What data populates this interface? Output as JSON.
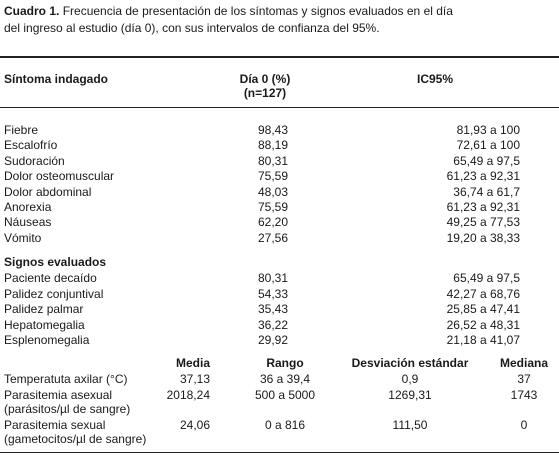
{
  "caption": {
    "label": "Cuadro 1.",
    "line1": "Frecuencia de presentación de los síntomas y signos evaluados en el día",
    "line2": "del ingreso al estudio (día 0), con      sus intervalos de confianza del 95%."
  },
  "header": {
    "col1": "Síntoma indagado",
    "col2_line1": "Día 0 (%)",
    "col2_line2": "(n=127)",
    "col3": "IC95%"
  },
  "symptoms": [
    {
      "name": "Fiebre",
      "pct": "98,43",
      "ci": "81,93 a 100"
    },
    {
      "name": "Escalofrío",
      "pct": "88,19",
      "ci": "72,61 a 100"
    },
    {
      "name": "Sudoración",
      "pct": "80,31",
      "ci": "65,49 a 97,5"
    },
    {
      "name": "Dolor osteomuscular",
      "pct": "75,59",
      "ci": "61,23 a 92,31"
    },
    {
      "name": "Dolor abdominal",
      "pct": "48,03",
      "ci": "36,74 a 61,7"
    },
    {
      "name": "Anorexia",
      "pct": "75,59",
      "ci": "61,23 a 92,31"
    },
    {
      "name": "Náuseas",
      "pct": "62,20",
      "ci": "49,25 a 77,53"
    },
    {
      "name": "Vómito",
      "pct": "27,56",
      "ci": "19,20 a 38,33"
    }
  ],
  "signs_heading": "Signos evaluados",
  "signs": [
    {
      "name": "Paciente decaído",
      "pct": "80,31",
      "ci": "65,49 a 97,5"
    },
    {
      "name": "Palidez conjuntival",
      "pct": "54,33",
      "ci": "42,27 a 68,76"
    },
    {
      "name": "Palidez palmar",
      "pct": "35,43",
      "ci": "25,85 a 47,41"
    },
    {
      "name": "Hepatomegalia",
      "pct": "36,22",
      "ci": "26,52 a 48,31"
    },
    {
      "name": "Esplenomegalia",
      "pct": "29,92",
      "ci": "21,18 a 41,07"
    }
  ],
  "stats_header": {
    "media": "Media",
    "rango": "Rango",
    "desviacion": "Desviación estándar",
    "mediana": "Mediana"
  },
  "stats": [
    {
      "name_line1": "Temperatuta axilar (°C)",
      "name_line2": "",
      "media": "37,13",
      "rango": "36 a 39,4",
      "desviacion": "0,9",
      "mediana": "37"
    },
    {
      "name_line1": "Parasitemia asexual",
      "name_line2": "(parásitos/µl de sangre)",
      "media": "2018,24",
      "rango": "500 a 5000",
      "desviacion": "1269,31",
      "mediana": "1743"
    },
    {
      "name_line1": "Parasitemia sexual",
      "name_line2": "(gametocitos/µl de sangre)",
      "media": "24,06",
      "rango": "0 a 816",
      "desviacion": "111,50",
      "mediana": "0"
    }
  ]
}
